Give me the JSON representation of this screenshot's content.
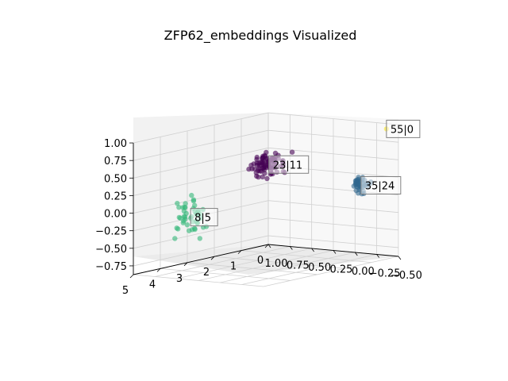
{
  "chart_data": {
    "type": "scatter",
    "title": "ZFP62_embeddings Visualized",
    "projection": "3d",
    "grid": true,
    "colormap": "viridis",
    "axes": {
      "x": {
        "ticks": [
          "0",
          "1",
          "2",
          "3",
          "4",
          "5"
        ],
        "range": [
          0,
          5
        ]
      },
      "y": {
        "ticks": [
          "1.00",
          "0.75",
          "0.50",
          "0.25",
          "0.00",
          "−0.25",
          "−0.50"
        ],
        "range": [
          -0.5,
          1.0
        ]
      },
      "z": {
        "ticks": [
          "1.00",
          "0.75",
          "0.50",
          "0.25",
          "0.00",
          "−0.25",
          "−0.50",
          "−0.75"
        ],
        "range": [
          -0.875,
          1.0
        ]
      }
    },
    "clusters": [
      {
        "label": "23|11",
        "color": "#440154",
        "count": 90,
        "center": [
          0.3,
          0.9,
          0.3
        ]
      },
      {
        "label": "8|5",
        "color": "#35b779",
        "count": 45,
        "center": [
          3.2,
          0.9,
          -0.2
        ]
      },
      {
        "label": "35|24",
        "color": "#31688e",
        "count": 40,
        "center": [
          0.1,
          -0.1,
          0.1
        ]
      },
      {
        "label": "55|0",
        "color": "#fde725",
        "count": 1,
        "center": [
          -0.2,
          -0.3,
          0.9
        ]
      }
    ]
  }
}
